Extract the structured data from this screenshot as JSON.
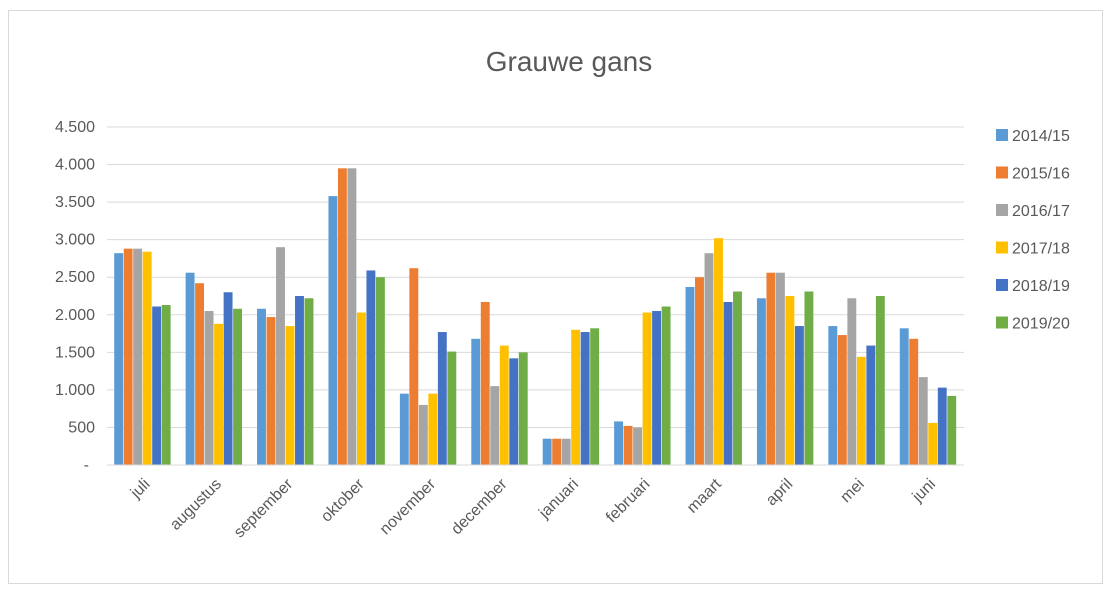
{
  "chart_data": {
    "type": "bar",
    "title": "Grauwe gans",
    "xlabel": "",
    "ylabel": "",
    "ylim": [
      0,
      4500
    ],
    "yticks": [
      0,
      500,
      1000,
      1500,
      2000,
      2500,
      3000,
      3500,
      4000,
      4500
    ],
    "ytick_labels": [
      "-",
      "500",
      "1.000",
      "1.500",
      "2.000",
      "2.500",
      "3.000",
      "3.500",
      "4.000",
      "4.500"
    ],
    "grid": true,
    "legend_position": "right",
    "categories": [
      "juli",
      "augustus",
      "september",
      "oktober",
      "november",
      "december",
      "januari",
      "februari",
      "maart",
      "april",
      "mei",
      "juni"
    ],
    "series": [
      {
        "name": "2014/15",
        "color": "#5b9bd5",
        "values": [
          2820,
          2560,
          2080,
          3580,
          950,
          1680,
          350,
          580,
          2370,
          2220,
          1850,
          1820
        ]
      },
      {
        "name": "2015/16",
        "color": "#ed7d31",
        "values": [
          2880,
          2420,
          1970,
          3950,
          2620,
          2170,
          350,
          520,
          2500,
          2560,
          1730,
          1680
        ]
      },
      {
        "name": "2016/17",
        "color": "#a5a5a5",
        "values": [
          2880,
          2050,
          2900,
          3950,
          800,
          1050,
          350,
          500,
          2820,
          2560,
          2220,
          1170
        ]
      },
      {
        "name": "2017/18",
        "color": "#ffc000",
        "values": [
          2840,
          1880,
          1850,
          2030,
          950,
          1590,
          1800,
          2030,
          3020,
          2250,
          1440,
          560
        ]
      },
      {
        "name": "2018/19",
        "color": "#4472c4",
        "values": [
          2110,
          2300,
          2250,
          2590,
          1770,
          1420,
          1770,
          2050,
          2170,
          1850,
          1590,
          1030
        ]
      },
      {
        "name": "2019/20",
        "color": "#70ad47",
        "values": [
          2130,
          2080,
          2220,
          2500,
          1510,
          1500,
          1820,
          2110,
          2310,
          2310,
          2250,
          920
        ]
      }
    ]
  }
}
